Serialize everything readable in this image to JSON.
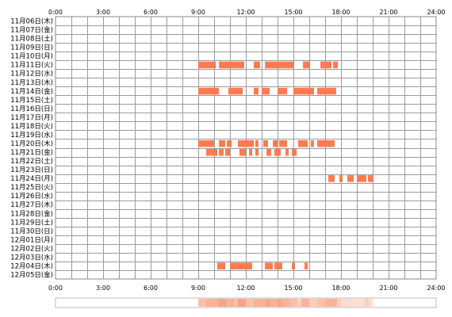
{
  "chart_data": {
    "type": "timeline",
    "x_unit": "hour",
    "xlim": [
      0,
      24
    ],
    "x_ticks": [
      "0:00",
      "3:00",
      "6:00",
      "9:00",
      "12:00",
      "15:00",
      "18:00",
      "21:00",
      "24:00"
    ],
    "x_tick_values": [
      0,
      3,
      6,
      9,
      12,
      15,
      18,
      21,
      24
    ],
    "rows": [
      "11月06日(木)",
      "11月07日(金)",
      "11月08日(土)",
      "11月09日(日)",
      "11月10日(月)",
      "11月11日(火)",
      "11月12日(水)",
      "11月13日(木)",
      "11月14日(金)",
      "11月15日(土)",
      "11月16日(日)",
      "11月17日(月)",
      "11月18日(火)",
      "11月19日(水)",
      "11月20日(木)",
      "11月21日(金)",
      "11月22日(土)",
      "11月23日(日)",
      "11月24日(月)",
      "11月25日(火)",
      "11月26日(水)",
      "11月27日(木)",
      "11月28日(金)",
      "11月29日(土)",
      "11月30日(日)",
      "12月01日(月)",
      "12月02日(火)",
      "12月03日(水)",
      "12月04日(木)",
      "12月05日(金)"
    ],
    "grid": true,
    "bar_color": "#ff7a50",
    "intervals": [
      {
        "row": 5,
        "spans": [
          [
            9.0,
            10.1
          ],
          [
            10.3,
            11.9
          ],
          [
            12.5,
            12.9
          ],
          [
            13.2,
            15.0
          ],
          [
            15.6,
            16.0
          ],
          [
            16.7,
            17.4
          ],
          [
            17.5,
            17.8
          ]
        ]
      },
      {
        "row": 8,
        "spans": [
          [
            9.0,
            10.3
          ],
          [
            10.9,
            11.8
          ],
          [
            12.5,
            12.8
          ],
          [
            13.0,
            13.5
          ],
          [
            14.0,
            14.6
          ],
          [
            15.0,
            16.3
          ],
          [
            16.5,
            17.7
          ]
        ]
      },
      {
        "row": 14,
        "spans": [
          [
            9.0,
            10.0
          ],
          [
            10.3,
            10.7
          ],
          [
            10.8,
            11.1
          ],
          [
            11.5,
            12.5
          ],
          [
            12.6,
            12.8
          ],
          [
            13.1,
            13.4
          ],
          [
            13.7,
            14.0
          ],
          [
            14.1,
            14.6
          ],
          [
            15.3,
            15.9
          ],
          [
            16.1,
            16.3
          ],
          [
            16.5,
            17.6
          ]
        ]
      },
      {
        "row": 15,
        "spans": [
          [
            9.5,
            10.2
          ],
          [
            10.3,
            10.6
          ],
          [
            10.7,
            11.0
          ],
          [
            11.6,
            12.0
          ],
          [
            12.2,
            12.4
          ],
          [
            12.6,
            12.8
          ],
          [
            13.3,
            13.6
          ],
          [
            13.8,
            14.2
          ],
          [
            14.5,
            14.7
          ],
          [
            14.9,
            15.2
          ]
        ]
      },
      {
        "row": 18,
        "spans": [
          [
            17.2,
            17.6
          ],
          [
            17.9,
            18.1
          ],
          [
            18.4,
            18.8
          ],
          [
            19.0,
            19.6
          ],
          [
            19.7,
            20.0
          ]
        ]
      },
      {
        "row": 28,
        "spans": [
          [
            10.2,
            10.7
          ],
          [
            11.0,
            12.4
          ],
          [
            13.2,
            13.7
          ],
          [
            13.8,
            14.3
          ],
          [
            14.9,
            15.1
          ],
          [
            15.7,
            15.9
          ]
        ]
      }
    ]
  }
}
